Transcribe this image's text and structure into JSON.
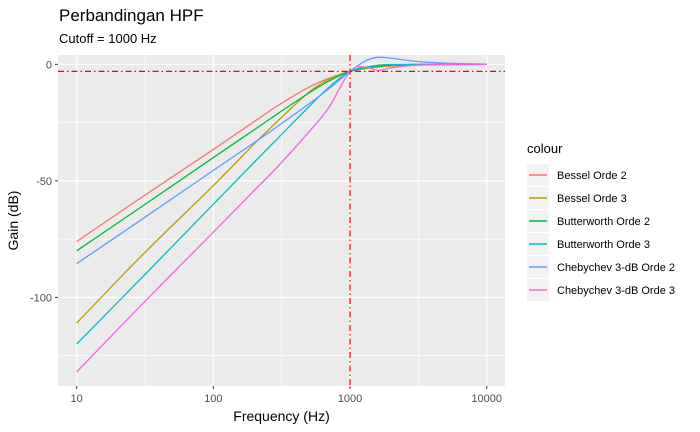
{
  "chart_data": {
    "type": "line",
    "title": "Perbandingan HPF",
    "subtitle": "Cutoff = 1000 Hz",
    "xlabel": "Frequency (Hz)",
    "ylabel": "Gain (dB)",
    "x_scale": "log10",
    "xlim": [
      7.3,
      13600
    ],
    "ylim": [
      -138,
      4
    ],
    "x_ticks": [
      10,
      100,
      1000,
      10000
    ],
    "x_tick_labels": [
      "10",
      "100",
      "1000",
      "10000"
    ],
    "y_ticks": [
      0,
      -50,
      -100
    ],
    "y_tick_labels": [
      "0",
      "-50",
      "-100"
    ],
    "grid": true,
    "legend_title": "colour",
    "legend_position": "right",
    "reference_lines": [
      {
        "orientation": "vertical",
        "x": 1000,
        "color": "#ff0000",
        "style": "dashdot"
      },
      {
        "orientation": "horizontal",
        "y": -3.01,
        "color": "#ff0000",
        "style": "dashdot"
      }
    ],
    "series": [
      {
        "name": "Bessel Orde 2",
        "color": "#F8766D",
        "x": [
          10,
          30,
          100,
          200,
          300,
          500,
          700,
          1000,
          1500,
          2000,
          3000,
          5000,
          10000
        ],
        "y": [
          -76,
          -57,
          -36.5,
          -24.5,
          -17.5,
          -9.8,
          -6,
          -3,
          -1.3,
          -0.7,
          -0.3,
          -0.1,
          0
        ]
      },
      {
        "name": "Bessel Orde 3",
        "color": "#B79F00",
        "x": [
          10,
          30,
          100,
          200,
          300,
          500,
          700,
          1000,
          1500,
          2000,
          3000,
          5000,
          10000
        ],
        "y": [
          -111,
          -82,
          -52,
          -34,
          -24,
          -12,
          -6.5,
          -3,
          -1.3,
          -0.7,
          -0.3,
          -0.1,
          0
        ]
      },
      {
        "name": "Butterworth Orde 2",
        "color": "#00BA38",
        "x": [
          10,
          30,
          100,
          200,
          300,
          500,
          700,
          1000,
          1500,
          2000,
          3000,
          5000,
          10000
        ],
        "y": [
          -80,
          -61,
          -40,
          -28,
          -20.9,
          -12.3,
          -7.2,
          -3,
          -1,
          -0.3,
          -0.07,
          -0.01,
          0
        ]
      },
      {
        "name": "Butterworth Orde 3",
        "color": "#00BFC4",
        "x": [
          10,
          30,
          100,
          200,
          300,
          500,
          700,
          1000,
          1500,
          2000,
          3000,
          5000,
          10000
        ],
        "y": [
          -120,
          -91.5,
          -60,
          -41.9,
          -31.4,
          -18.2,
          -9.9,
          -3,
          -0.6,
          -0.1,
          0,
          0,
          0
        ]
      },
      {
        "name": "Chebychev 3-dB Orde 2",
        "color": "#619CFF",
        "x": [
          10,
          30,
          100,
          200,
          300,
          500,
          700,
          1000,
          1300,
          1600,
          2000,
          3000,
          5000,
          10000
        ],
        "y": [
          -85.5,
          -66.5,
          -45.5,
          -33.5,
          -26.3,
          -17,
          -10.5,
          -3,
          1.5,
          3,
          2.6,
          1.3,
          0.5,
          0.1
        ]
      },
      {
        "name": "Chebychev 3-dB Orde 3",
        "color": "#F564E3",
        "x": [
          10,
          30,
          100,
          200,
          300,
          500,
          700,
          1000,
          1300,
          1600,
          2000,
          3000,
          5000,
          10000
        ],
        "y": [
          -132,
          -103,
          -72,
          -54,
          -43.5,
          -29,
          -18.5,
          -3,
          -1.2,
          -2.6,
          -1.5,
          -0.4,
          -0.1,
          0
        ]
      }
    ]
  }
}
